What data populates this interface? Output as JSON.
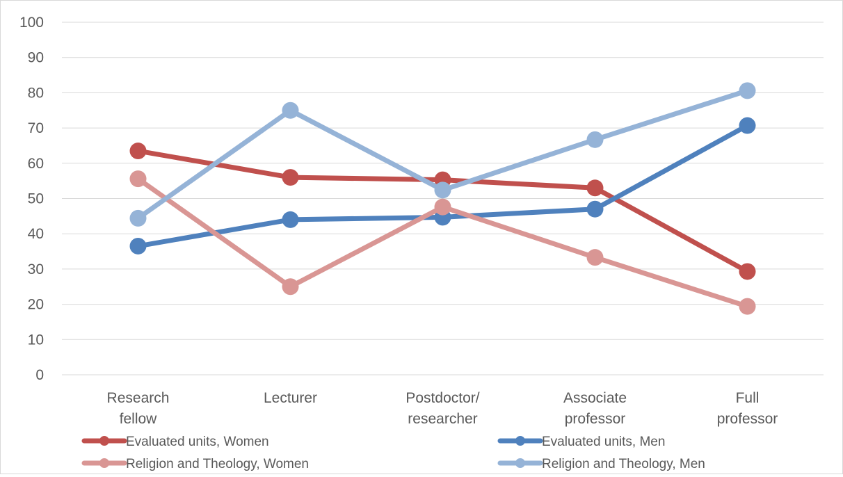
{
  "chart_data": {
    "type": "line",
    "title": "",
    "xlabel": "",
    "ylabel": "",
    "ylim": [
      0,
      100
    ],
    "y_ticks": [
      0,
      10,
      20,
      30,
      40,
      50,
      60,
      70,
      80,
      90,
      100
    ],
    "grid": true,
    "legend_position": "bottom",
    "categories": [
      [
        "Research",
        "fellow"
      ],
      [
        "Lecturer"
      ],
      [
        "Postdoctor/",
        "researcher"
      ],
      [
        "Associate",
        "professor"
      ],
      [
        "Full",
        "professor"
      ]
    ],
    "series": [
      {
        "name": "Evaluated units, Women",
        "color": "#c0504d",
        "values": [
          63.5,
          56,
          55.3,
          53,
          29.3
        ]
      },
      {
        "name": "Evaluated units, Men",
        "color": "#4f81bd",
        "values": [
          36.5,
          44,
          44.7,
          47,
          70.7
        ]
      },
      {
        "name": "Religion and Theology, Women",
        "color": "#d99694",
        "values": [
          55.6,
          25,
          47.6,
          33.3,
          19.4
        ]
      },
      {
        "name": "Religion and Theology, Men",
        "color": "#95b3d7",
        "values": [
          44.4,
          75,
          52.4,
          66.7,
          80.6
        ]
      }
    ]
  }
}
